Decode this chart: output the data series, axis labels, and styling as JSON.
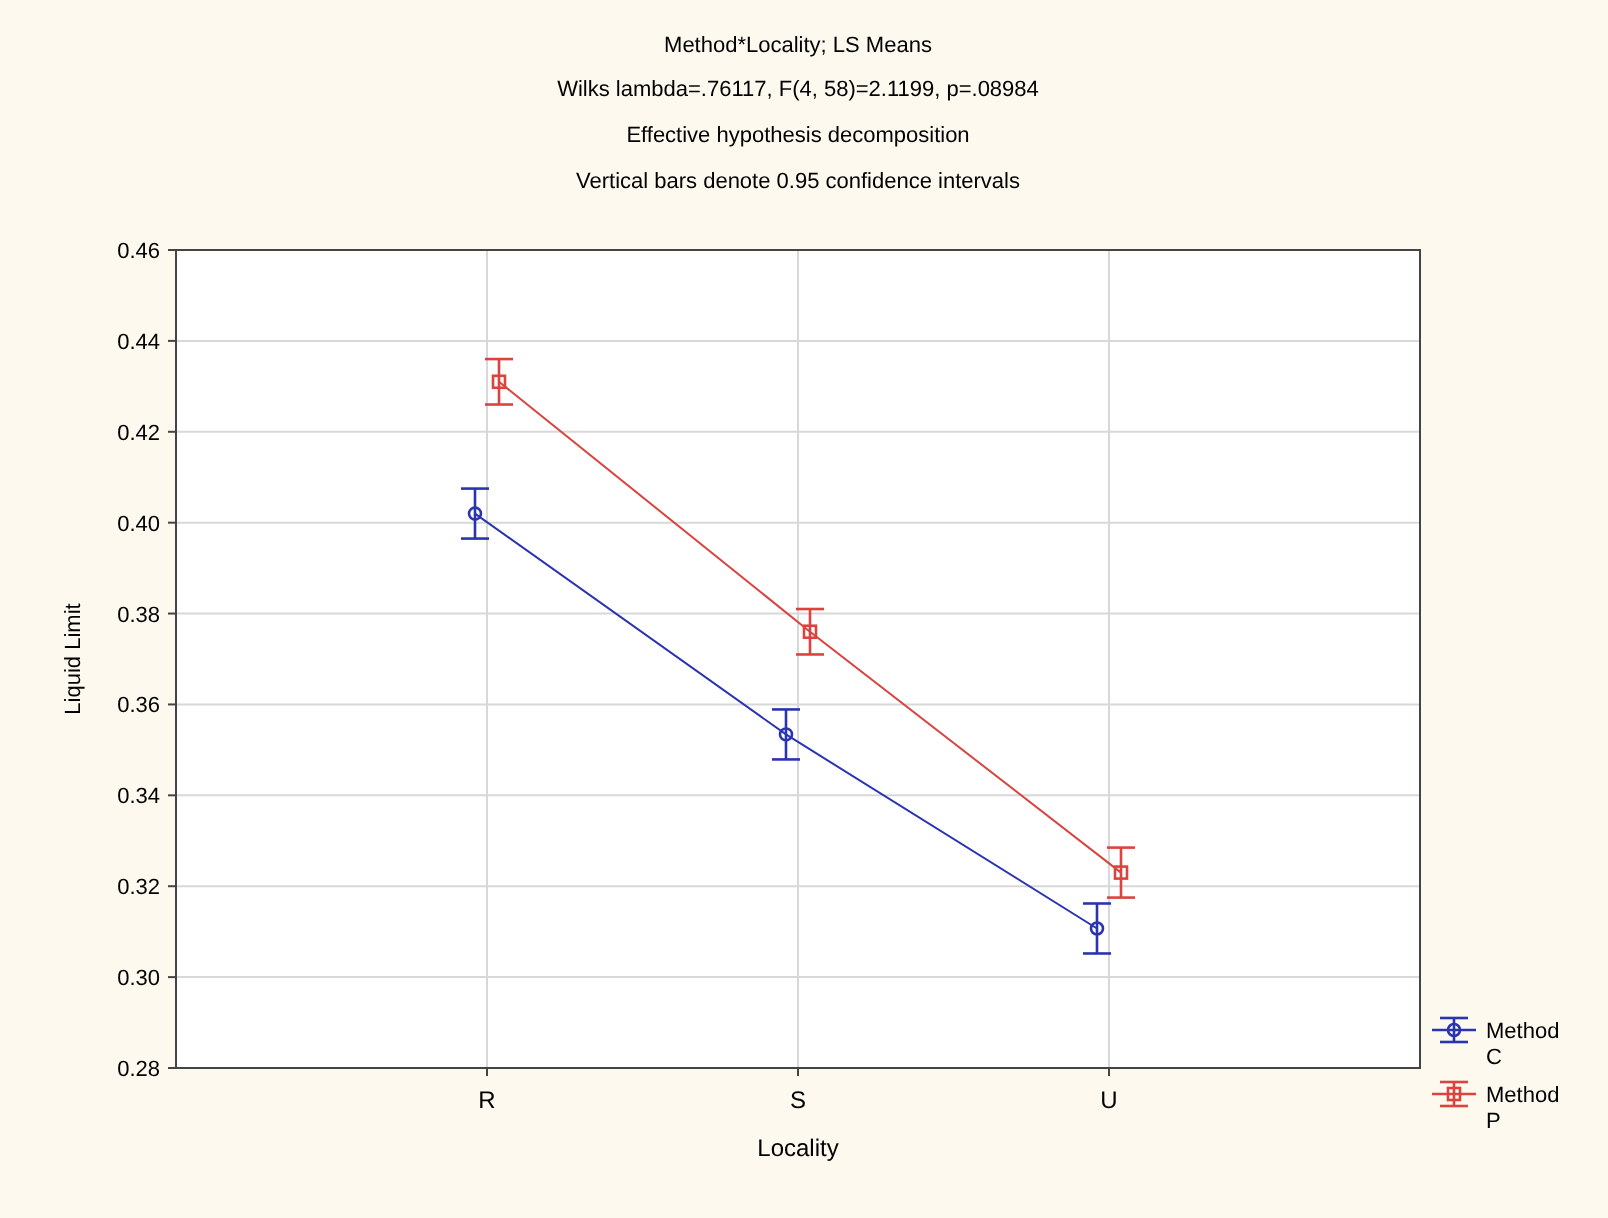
{
  "chart_data": {
    "type": "line",
    "title": "Method*Locality; LS Means",
    "subtitle": "Wilks lambda=.76117, F(4, 58)=2.1199, p=.08984",
    "annotations": [
      "Effective hypothesis decomposition",
      "Vertical bars denote 0.95 confidence intervals"
    ],
    "xlabel": "Locality",
    "ylabel": "Liquid Limit",
    "categories": [
      "R",
      "S",
      "U"
    ],
    "series": [
      {
        "name": "Method C",
        "color": "#2b34b0",
        "marker": "circle",
        "values": [
          0.402,
          0.3534,
          0.3107
        ],
        "errors": [
          0.0055,
          0.0055,
          0.0055
        ]
      },
      {
        "name": "Method P",
        "color": "#d9443f",
        "marker": "square",
        "values": [
          0.431,
          0.376,
          0.323
        ],
        "errors": [
          0.005,
          0.005,
          0.0055
        ]
      }
    ],
    "ylim": [
      0.28,
      0.46
    ],
    "yticks": [
      0.28,
      {
        "value": 0.3,
        "label": "0.30"
      },
      0.32,
      0.34,
      0.36,
      0.38,
      {
        "value": 0.4,
        "label": "0.40"
      },
      0.42,
      0.44,
      0.46
    ],
    "grid": true,
    "legend": "bottom right"
  }
}
